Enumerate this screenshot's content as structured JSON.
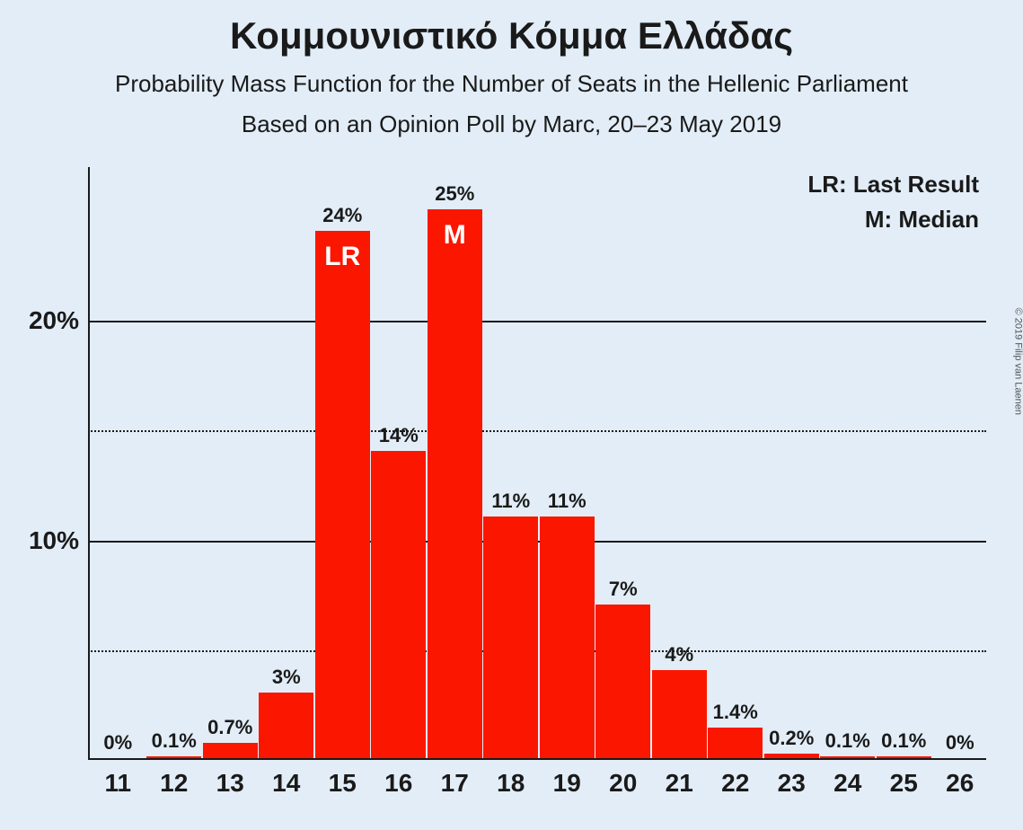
{
  "title": "Κομμουνιστικό Κόμμα Ελλάδας",
  "subtitle1": "Probability Mass Function for the Number of Seats in the Hellenic Parliament",
  "subtitle2": "Based on an Opinion Poll by Marc, 20–23 May 2019",
  "copyright": "© 2019 Filip van Laenen",
  "legend": {
    "lr": "LR: Last Result",
    "m": "M: Median"
  },
  "chart": {
    "type": "bar",
    "background_color": "#e2edf7",
    "bar_color": "#fb1600",
    "grid_color": "#1a1a1a",
    "text_color": "#1a1a1a",
    "inner_label_color": "#ffffff",
    "title_fontsize": 42,
    "subtitle_fontsize": 26,
    "value_label_fontsize": 22,
    "xtick_fontsize": 28,
    "ytick_fontsize": 28,
    "legend_fontsize": 26,
    "inner_label_fontsize": 30,
    "ylim": [
      0,
      27
    ],
    "y_major_ticks": [
      10,
      20
    ],
    "y_minor_ticks": [
      5,
      15
    ],
    "bar_width_ratio": 0.98,
    "categories": [
      "11",
      "12",
      "13",
      "14",
      "15",
      "16",
      "17",
      "18",
      "19",
      "20",
      "21",
      "22",
      "23",
      "24",
      "25",
      "26"
    ],
    "values": [
      0,
      0.1,
      0.7,
      3,
      24,
      14,
      25,
      11,
      11,
      7,
      4,
      1.4,
      0.2,
      0.1,
      0.1,
      0
    ],
    "value_labels": [
      "0%",
      "0.1%",
      "0.7%",
      "3%",
      "24%",
      "14%",
      "25%",
      "11%",
      "11%",
      "7%",
      "4%",
      "1.4%",
      "0.2%",
      "0.1%",
      "0.1%",
      "0%"
    ],
    "inner_labels": {
      "4": "LR",
      "6": "M"
    }
  }
}
